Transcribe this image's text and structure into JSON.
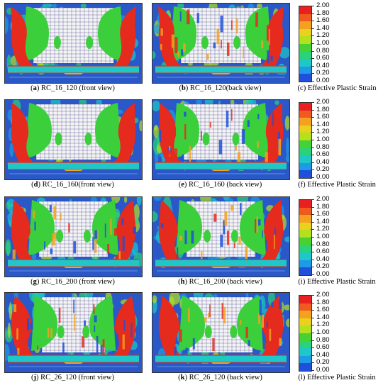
{
  "figure_rows": [
    {
      "front": {
        "letter": "a",
        "caption": " RC_16_120 (front view)"
      },
      "back": {
        "letter": "b",
        "caption": " RC_16_120(back view)"
      },
      "legend": {
        "letter": "c",
        "caption": " Effective Plastic Strain"
      }
    },
    {
      "front": {
        "letter": "d",
        "caption": " RC_16_160(front view)"
      },
      "back": {
        "letter": "e",
        "caption": " RC_16_160 (back view)"
      },
      "legend": {
        "letter": "f",
        "caption": " Effective Plastic Strain"
      }
    },
    {
      "front": {
        "letter": "g",
        "caption": " RC_16_200 (front view)"
      },
      "back": {
        "letter": "h",
        "caption": " RC_16_200 (back view)"
      },
      "legend": {
        "letter": "i",
        "caption": " Effective Plastic Strain"
      }
    },
    {
      "front": {
        "letter": "j",
        "caption": " RC_26_120 (front view)"
      },
      "back": {
        "letter": "k",
        "caption": " RC_26_120 (back view)"
      },
      "legend": {
        "letter": "l",
        "caption": " Effective Plastic Strain"
      }
    }
  ],
  "legend_scale": {
    "ticks": [
      "2.00",
      "1.80",
      "1.60",
      "1.40",
      "1.20",
      "1.00",
      "0.80",
      "0.60",
      "0.40",
      "0.20",
      "0.00"
    ],
    "colors": [
      "#e82020",
      "#f05a1e",
      "#f5a01e",
      "#e8d21e",
      "#b4e01e",
      "#46d232",
      "#2ad27a",
      "#1ec8c8",
      "#1e9be6",
      "#1e50dc"
    ]
  },
  "colors": {
    "background_blue": "#2a58c8",
    "plastic_red": "#e52a1e",
    "elastic_green": "#3ccf3c",
    "mesh_white": "#f4f4f4"
  }
}
